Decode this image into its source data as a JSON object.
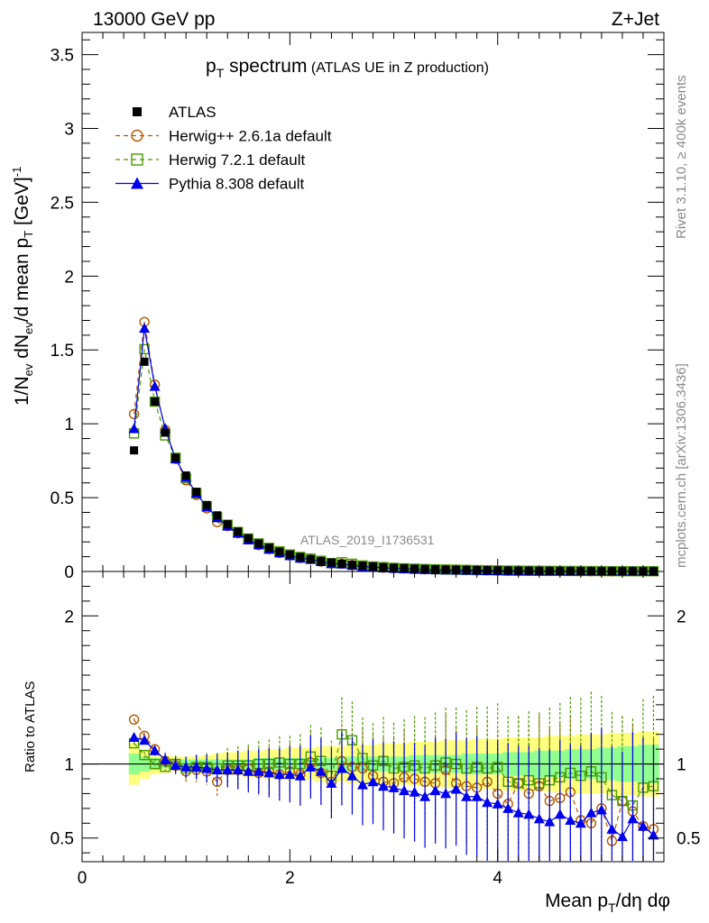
{
  "chart_data": {
    "type": "line",
    "header": {
      "left": "13000 GeV pp",
      "right": "Z+Jet"
    },
    "title": {
      "main": "p",
      "main_sub": "T",
      "rest": " spectrum",
      "suffix": " (ATLAS UE in Z production)"
    },
    "analysis_label": "ATLAS_2019_I1736531",
    "side_labels": {
      "rivet": "Rivet 3.1.10, ≥ 400k events",
      "mcplots": "mcplots.cern.ch [arXiv:1306.3436]"
    },
    "ylabel_top": {
      "a": "1/N",
      "a_sub": "ev",
      "b": " dN",
      "b_sub": "ev",
      "c": "/d mean p",
      "c_sub": "T",
      "d": " [GeV]",
      "d_sup": "-1"
    },
    "ylabel_bottom": "Ratio to ATLAS",
    "xlabel": {
      "a": "Mean p",
      "a_sub": "T",
      "b": "/dη dφ"
    },
    "xlim": [
      0,
      5.6
    ],
    "ylim_top": [
      0,
      3.65
    ],
    "ylim_bottom": [
      0.34,
      2.3
    ],
    "x_ticks": [
      "0",
      "2",
      "4"
    ],
    "y_ticks_top": [
      "0",
      "0.5",
      "1",
      "1.5",
      "2",
      "2.5",
      "3",
      "3.5"
    ],
    "y_ticks_bottom": [
      "0.5",
      "1",
      "2"
    ],
    "legend": [
      {
        "label": "ATLAS",
        "color": "#000000",
        "marker": "square-filled"
      },
      {
        "label": "Herwig++ 2.6.1a default",
        "color": "#b35900",
        "marker": "circle-open"
      },
      {
        "label": "Herwig 7.2.1 default",
        "color": "#4c9900",
        "marker": "square-open"
      },
      {
        "label": "Pythia 8.308 default",
        "color": "#0000ee",
        "marker": "triangle-filled"
      }
    ],
    "x": [
      0.5,
      0.6,
      0.7,
      0.8,
      0.9,
      1.0,
      1.1,
      1.2,
      1.3,
      1.4,
      1.5,
      1.6,
      1.7,
      1.8,
      1.9,
      2.0,
      2.1,
      2.2,
      2.3,
      2.4,
      2.5,
      2.6,
      2.7,
      2.8,
      2.9,
      3.0,
      3.1,
      3.2,
      3.3,
      3.4,
      3.5,
      3.6,
      3.7,
      3.8,
      3.9,
      4.0,
      4.1,
      4.2,
      4.3,
      4.4,
      4.5,
      4.6,
      4.7,
      4.8,
      4.9,
      5.0,
      5.1,
      5.2,
      5.3,
      5.4,
      5.5
    ],
    "atlas_values": [
      0.82,
      1.42,
      1.15,
      0.94,
      0.77,
      0.65,
      0.54,
      0.45,
      0.38,
      0.32,
      0.27,
      0.225,
      0.19,
      0.16,
      0.135,
      0.115,
      0.098,
      0.083,
      0.071,
      0.061,
      0.052,
      0.045,
      0.039,
      0.034,
      0.029,
      0.025,
      0.022,
      0.019,
      0.017,
      0.015,
      0.013,
      0.012,
      0.011,
      0.0095,
      0.0085,
      0.0076,
      0.0068,
      0.0061,
      0.0055,
      0.005,
      0.0045,
      0.0041,
      0.0037,
      0.0034,
      0.0031,
      0.0028,
      0.0026,
      0.0024,
      0.0022,
      0.002,
      0.0019
    ],
    "series": [
      {
        "name": "Herwig++ 2.6.1a default",
        "ratio": [
          1.3,
          1.19,
          1.1,
          1.02,
          0.99,
          0.95,
          0.96,
          0.95,
          0.88,
          0.96,
          0.96,
          0.97,
          0.94,
          0.95,
          0.93,
          0.95,
          0.93,
          1.01,
          0.94,
          0.88,
          1.02,
          0.98,
          0.97,
          0.92,
          0.88,
          0.87,
          0.91,
          0.9,
          0.88,
          0.87,
          0.96,
          0.87,
          0.85,
          0.84,
          0.88,
          0.8,
          0.73,
          0.87,
          0.8,
          0.85,
          0.75,
          0.77,
          0.81,
          0.62,
          0.6,
          0.7,
          0.48,
          0.75,
          0.68,
          0.58,
          0.56
        ]
      },
      {
        "name": "Herwig 7.2.1 default",
        "ratio": [
          1.14,
          1.06,
          1.0,
          0.98,
          1.0,
          0.97,
          0.98,
          0.98,
          0.97,
          0.99,
          0.99,
          0.99,
          1.0,
          1.0,
          1.01,
          1.0,
          1.0,
          1.05,
          1.02,
          0.92,
          1.2,
          1.16,
          1.04,
          0.99,
          1.02,
          0.97,
          0.98,
          0.99,
          0.97,
          0.99,
          1.01,
          1.0,
          0.97,
          0.98,
          0.97,
          0.98,
          0.88,
          0.87,
          0.89,
          0.87,
          0.89,
          0.91,
          0.94,
          0.92,
          0.95,
          0.91,
          0.79,
          0.75,
          0.72,
          0.84,
          0.85
        ]
      },
      {
        "name": "Pythia 8.308 default",
        "ratio": [
          1.18,
          1.16,
          1.09,
          1.03,
          0.99,
          0.98,
          0.98,
          0.97,
          0.96,
          0.96,
          0.96,
          0.95,
          0.95,
          0.94,
          0.93,
          0.93,
          0.92,
          0.98,
          0.95,
          0.87,
          0.97,
          0.92,
          0.86,
          0.88,
          0.85,
          0.84,
          0.82,
          0.81,
          0.78,
          0.82,
          0.8,
          0.83,
          0.78,
          0.78,
          0.74,
          0.73,
          0.7,
          0.67,
          0.66,
          0.63,
          0.61,
          0.66,
          0.62,
          0.6,
          0.67,
          0.69,
          0.56,
          0.51,
          0.63,
          0.58,
          0.52
        ]
      }
    ],
    "band_yellow": {
      "lo": [
        0.86,
        0.9,
        0.93,
        0.94,
        0.95,
        0.95,
        0.95,
        0.94,
        0.93,
        0.92,
        0.92,
        0.91,
        0.91,
        0.9,
        0.9,
        0.89,
        0.89,
        0.89,
        0.88,
        0.88,
        0.88,
        0.87,
        0.87,
        0.87,
        0.86,
        0.86,
        0.86,
        0.85,
        0.85,
        0.85,
        0.84,
        0.84,
        0.84,
        0.83,
        0.83,
        0.83,
        0.82,
        0.82,
        0.82,
        0.82,
        0.81,
        0.81,
        0.81,
        0.8,
        0.8,
        0.8,
        0.79,
        0.79,
        0.79,
        0.78,
        0.78
      ],
      "hi": [
        1.14,
        1.1,
        1.07,
        1.06,
        1.05,
        1.05,
        1.05,
        1.06,
        1.07,
        1.08,
        1.08,
        1.09,
        1.09,
        1.1,
        1.1,
        1.11,
        1.11,
        1.11,
        1.12,
        1.12,
        1.12,
        1.13,
        1.13,
        1.13,
        1.14,
        1.14,
        1.14,
        1.15,
        1.15,
        1.15,
        1.16,
        1.16,
        1.16,
        1.17,
        1.17,
        1.17,
        1.18,
        1.18,
        1.18,
        1.18,
        1.19,
        1.19,
        1.19,
        1.2,
        1.2,
        1.2,
        1.21,
        1.21,
        1.21,
        1.22,
        1.22
      ]
    },
    "band_green": {
      "lo": [
        0.93,
        0.95,
        0.96,
        0.97,
        0.97,
        0.97,
        0.97,
        0.97,
        0.97,
        0.97,
        0.97,
        0.97,
        0.96,
        0.96,
        0.96,
        0.96,
        0.96,
        0.96,
        0.96,
        0.96,
        0.95,
        0.95,
        0.95,
        0.95,
        0.95,
        0.95,
        0.95,
        0.94,
        0.94,
        0.94,
        0.94,
        0.94,
        0.93,
        0.93,
        0.93,
        0.93,
        0.92,
        0.92,
        0.92,
        0.91,
        0.91,
        0.91,
        0.9,
        0.9,
        0.9,
        0.89,
        0.89,
        0.88,
        0.88,
        0.87,
        0.87
      ],
      "hi": [
        1.07,
        1.05,
        1.04,
        1.03,
        1.03,
        1.03,
        1.03,
        1.03,
        1.03,
        1.03,
        1.03,
        1.03,
        1.04,
        1.04,
        1.04,
        1.04,
        1.04,
        1.04,
        1.04,
        1.04,
        1.05,
        1.05,
        1.05,
        1.05,
        1.05,
        1.05,
        1.05,
        1.06,
        1.06,
        1.06,
        1.06,
        1.06,
        1.07,
        1.07,
        1.07,
        1.07,
        1.08,
        1.08,
        1.08,
        1.09,
        1.09,
        1.09,
        1.1,
        1.1,
        1.1,
        1.11,
        1.11,
        1.12,
        1.12,
        1.13,
        1.13
      ]
    },
    "colors": {
      "data": "#000000",
      "herwigpp": "#b35900",
      "herwig7": "#4c9900",
      "pythia": "#0000ee",
      "band_yellow": "#ffff7f",
      "band_green": "#90ff90",
      "analysis_label": "#8a8a8a"
    }
  }
}
